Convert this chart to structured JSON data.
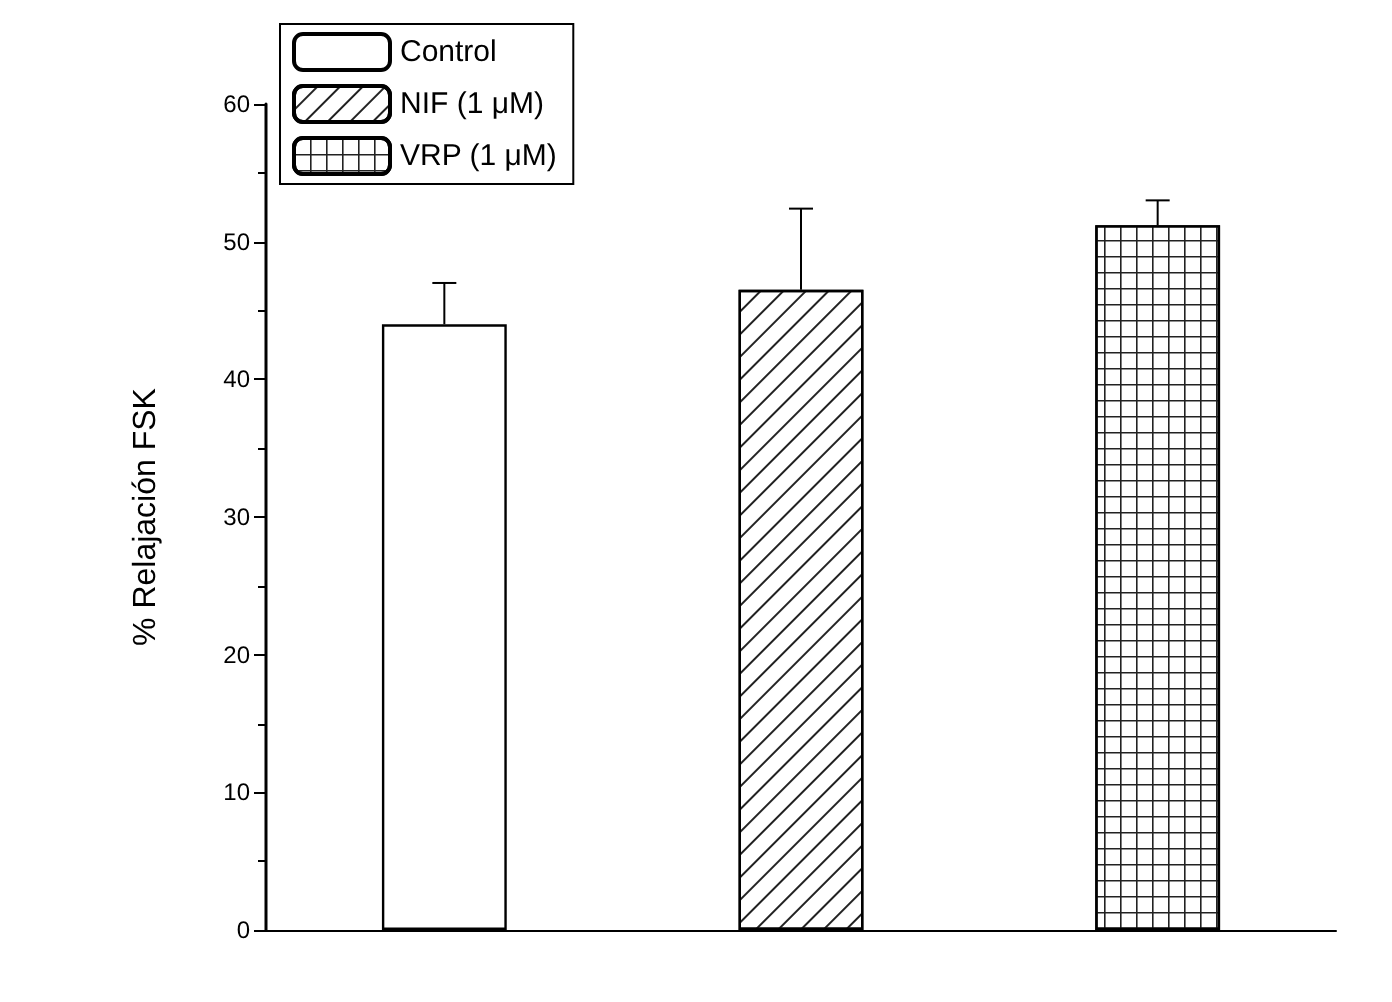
{
  "chart_data": {
    "type": "bar",
    "ylabel": "% Relajación FSK",
    "categories": [
      null,
      null,
      null
    ],
    "series": [
      {
        "name": "Control",
        "color": "#ffffff",
        "values": [
          44.0,
          null,
          null
        ],
        "errors": [
          [
            44.0,
            47.0
          ],
          null,
          null
        ]
      },
      {
        "name": "NIF (1 μM)",
        "color": "#ffffff",
        "values": [
          null,
          46.5,
          null
        ],
        "errors": [
          null,
          [
            46.5,
            52.4
          ],
          null
        ]
      },
      {
        "name": "VRP (1 μM)",
        "color": "#ffffff",
        "values": [
          null,
          null,
          51.2
        ],
        "errors": [
          null,
          null,
          [
            51.2,
            53.0
          ]
        ]
      }
    ],
    "ylim": [
      0,
      60
    ],
    "yticks": [
      0,
      10,
      20,
      30,
      40,
      50,
      60
    ],
    "grid": false,
    "legend": "top left"
  }
}
